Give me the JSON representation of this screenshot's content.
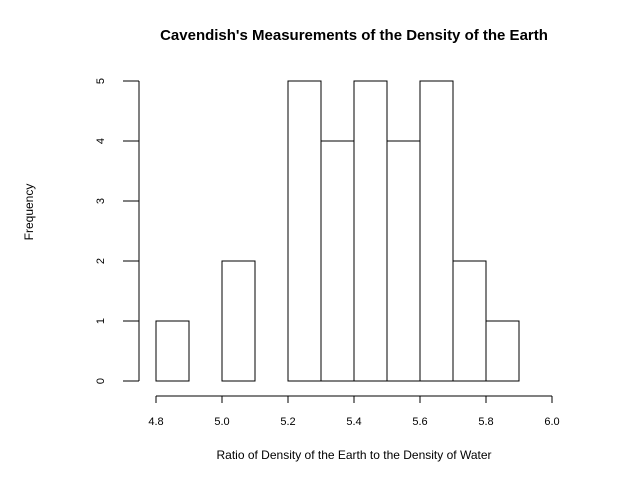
{
  "chart_data": {
    "type": "bar",
    "title": "Cavendish's Measurements of the Density of the Earth",
    "xlabel": "Ratio of Density of the Earth to the Density of Water",
    "ylabel": "Frequency",
    "bins": [
      {
        "start": 4.8,
        "end": 4.9,
        "count": 1
      },
      {
        "start": 4.9,
        "end": 5.0,
        "count": 0
      },
      {
        "start": 5.0,
        "end": 5.1,
        "count": 2
      },
      {
        "start": 5.1,
        "end": 5.2,
        "count": 0
      },
      {
        "start": 5.2,
        "end": 5.3,
        "count": 5
      },
      {
        "start": 5.3,
        "end": 5.4,
        "count": 4
      },
      {
        "start": 5.4,
        "end": 5.5,
        "count": 5
      },
      {
        "start": 5.5,
        "end": 5.6,
        "count": 4
      },
      {
        "start": 5.6,
        "end": 5.7,
        "count": 5
      },
      {
        "start": 5.7,
        "end": 5.8,
        "count": 2
      },
      {
        "start": 5.8,
        "end": 5.9,
        "count": 1
      }
    ],
    "xlim": [
      4.8,
      6.0
    ],
    "ylim": [
      0,
      5
    ],
    "x_ticks": [
      "4.8",
      "5.0",
      "5.2",
      "5.4",
      "5.6",
      "5.8",
      "6.0"
    ],
    "y_ticks": [
      "0",
      "1",
      "2",
      "3",
      "4",
      "5"
    ],
    "grid": false,
    "bar_fill": "#ffffff",
    "bar_stroke": "#000000"
  }
}
